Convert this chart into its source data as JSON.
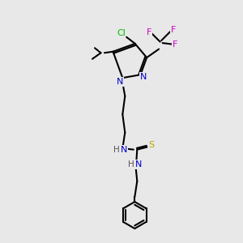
{
  "background_color": "#e8e8e8",
  "figsize": [
    3.0,
    3.0
  ],
  "dpi": 100,
  "colors": {
    "C": "#000000",
    "N": "#0000cc",
    "F": "#cc00cc",
    "Cl": "#00bb00",
    "S": "#aaaa00",
    "H": "#555555",
    "bond": "#000000"
  },
  "font_size": 7.5,
  "bond_lw": 1.5
}
